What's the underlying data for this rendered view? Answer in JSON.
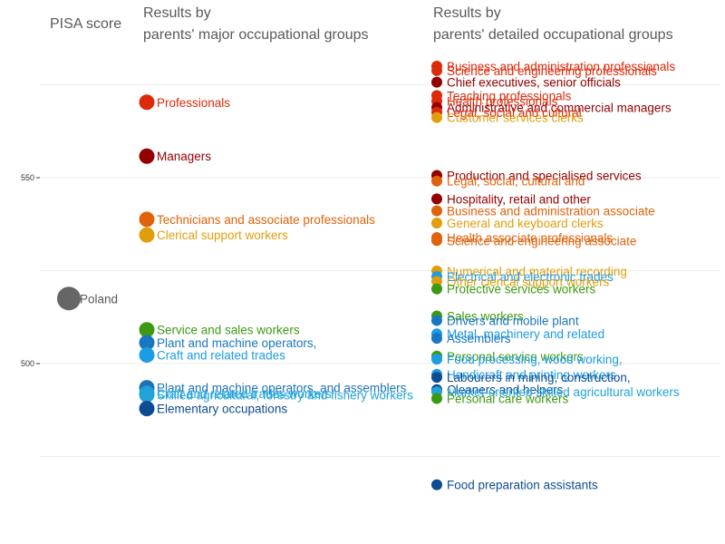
{
  "chart_data": {
    "type": "scatter",
    "title": "",
    "xlabel": "",
    "ylabel": "PISA score",
    "ylim": [
      460,
      585
    ],
    "yticks": [
      500,
      550
    ],
    "grid": true,
    "headers": {
      "axis": "PISA score",
      "major": [
        "Results by",
        "parents' major occupational groups"
      ],
      "detailed": [
        "Results by",
        "parents' detailed occupational groups"
      ]
    },
    "country": {
      "name": "Poland",
      "value": 517.5,
      "color": "#666666"
    },
    "major_groups": [
      {
        "name": "Professionals",
        "value": 570.3,
        "color": "#DC2A0A"
      },
      {
        "name": "Managers",
        "value": 555.8,
        "color": "#930000"
      },
      {
        "name": "Technicians and associate professionals",
        "value": 538.8,
        "color": "#E0620B"
      },
      {
        "name": "Clerical support workers",
        "value": 534.6,
        "color": "#E19E0A"
      },
      {
        "name": "Service and sales workers",
        "value": 509.1,
        "color": "#3C9A12"
      },
      {
        "name": "Plant and machine operators,",
        "value": 505.6,
        "color": "#1976C0"
      },
      {
        "name": "Craft and related trades",
        "value": 502.3,
        "color": "#1B9CE5"
      },
      {
        "name": "Plant and machine operators, and assemblers",
        "value": 493.5,
        "color": "#1C73B8"
      },
      {
        "name": "Craft and related trades workers",
        "value": 492.0,
        "color": "#1AA0D8"
      },
      {
        "name": "Skilled agricultural, forestry and fishery workers",
        "value": 491.6,
        "color": "#1FA3D9"
      },
      {
        "name": "Elementary occupations",
        "value": 487.9,
        "color": "#0E4C92"
      }
    ],
    "detailed_groups": [
      {
        "name": "Business and administration professionals",
        "value": 580.0,
        "color": "#DC2A0A"
      },
      {
        "name": "Science and engineering professionals",
        "value": 578.8,
        "color": "#DC2A0A"
      },
      {
        "name": "Chief executives, senior officials",
        "value": 575.7,
        "color": "#930000"
      },
      {
        "name": "Teaching professionals",
        "value": 572.1,
        "color": "#DC2A0A"
      },
      {
        "name": "Health professionals",
        "value": 570.6,
        "color": "#DC2A0A"
      },
      {
        "name": "Administrative and commercial managers",
        "value": 568.9,
        "color": "#930000"
      },
      {
        "name": "Legal, social and cultural",
        "value": 567.6,
        "color": "#DC2A0A"
      },
      {
        "name": "Customer services clerks",
        "value": 566.2,
        "color": "#E19E0A"
      },
      {
        "name": "Production and specialised services",
        "value": 550.6,
        "color": "#930000"
      },
      {
        "name": "Legal, social, cultural and",
        "value": 549.1,
        "color": "#E0620B"
      },
      {
        "name": "Hospitality, retail and other",
        "value": 544.3,
        "color": "#930000"
      },
      {
        "name": "Business and administration associate",
        "value": 541.1,
        "color": "#E0620B"
      },
      {
        "name": "General and keyboard clerks",
        "value": 537.8,
        "color": "#E19E0A"
      },
      {
        "name": "Health associate professionals",
        "value": 533.9,
        "color": "#E0620B"
      },
      {
        "name": "Science and engineering associate",
        "value": 533.1,
        "color": "#E0620B"
      },
      {
        "name": "Numerical and material recording",
        "value": 524.9,
        "color": "#E19E0A"
      },
      {
        "name": "Electrical and electronic trades",
        "value": 523.4,
        "color": "#1B9CE5"
      },
      {
        "name": "Other clerical support workers",
        "value": 522.1,
        "color": "#E19E0A"
      },
      {
        "name": "Protective services workers",
        "value": 520.1,
        "color": "#3C9A12"
      },
      {
        "name": "Sales workers",
        "value": 512.8,
        "color": "#3C9A12"
      },
      {
        "name": "Drivers and mobile plant",
        "value": 511.6,
        "color": "#1976C0"
      },
      {
        "name": "Metal, machinery and related",
        "value": 508.0,
        "color": "#1B9CE5"
      },
      {
        "name": "Assemblers",
        "value": 506.8,
        "color": "#1976C0"
      },
      {
        "name": "Personal service workers",
        "value": 502.0,
        "color": "#3C9A12"
      },
      {
        "name": "Food processing, wood working,",
        "value": 501.2,
        "color": "#1B9CE5"
      },
      {
        "name": "Handicraft and printing workers",
        "value": 497.1,
        "color": "#1B9CE5"
      },
      {
        "name": "Labourers in mining, construction,",
        "value": 496.3,
        "color": "#0E4C92"
      },
      {
        "name": "Cleaners and helpers",
        "value": 493.0,
        "color": "#0E4C92"
      },
      {
        "name": "Market-oriented skilled agricultural workers",
        "value": 492.4,
        "color": "#1FA3D9"
      },
      {
        "name": "Personal care workers",
        "value": 490.6,
        "color": "#3C9A12"
      },
      {
        "name": "Food preparation assistants",
        "value": 467.4,
        "color": "#0E4C92"
      }
    ]
  }
}
